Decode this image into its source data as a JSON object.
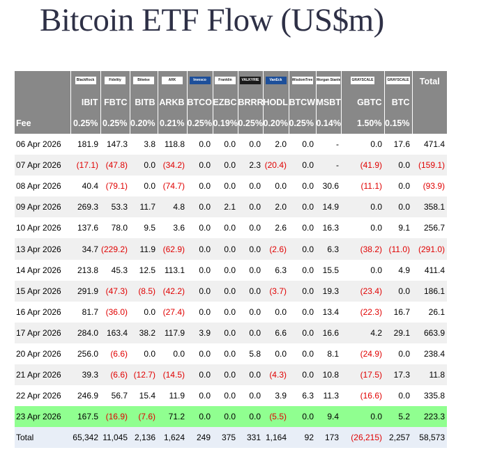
{
  "title": "Bitcoin ETF Flow (US$m)",
  "highlight_color": "#90ff90",
  "negative_color": "#e00000",
  "header_color": "#888888",
  "funds": [
    {
      "ticker": "IBIT",
      "issuer": "BlackRock",
      "fee": "0.25%"
    },
    {
      "ticker": "FBTC",
      "issuer": "Fidelity",
      "fee": "0.25%"
    },
    {
      "ticker": "BITB",
      "issuer": "Bitwise",
      "fee": "0.20%"
    },
    {
      "ticker": "ARKB",
      "issuer": "ARK",
      "fee": "0.21%"
    },
    {
      "ticker": "BTCO",
      "issuer": "Invesco",
      "fee": "0.25%"
    },
    {
      "ticker": "EZBC",
      "issuer": "Franklin",
      "fee": "0.19%"
    },
    {
      "ticker": "BRRR",
      "issuer": "VALKYRIE",
      "fee": "0.25%"
    },
    {
      "ticker": "HODL",
      "issuer": "VanEck",
      "fee": "0.20%"
    },
    {
      "ticker": "BTCW",
      "issuer": "WisdomTree",
      "fee": "0.25%"
    },
    {
      "ticker": "MSBT",
      "issuer": "Morgan Stanley",
      "fee": "0.14%"
    },
    {
      "ticker": "GBTC",
      "issuer": "GRAYSCALE",
      "fee": "1.50%"
    },
    {
      "ticker": "BTC",
      "issuer": "GRAYSCALE",
      "fee": "0.15%"
    }
  ],
  "total_label": "Total",
  "fee_label": "Fee",
  "rows": [
    {
      "date": "06 Apr 2026",
      "values": [
        "181.9",
        "147.3",
        "3.8",
        "118.8",
        "0.0",
        "0.0",
        "0.0",
        "2.0",
        "0.0",
        "-",
        "0.0",
        "17.6",
        "471.4"
      ]
    },
    {
      "date": "07 Apr 2026",
      "values": [
        "(17.1)",
        "(47.8)",
        "0.0",
        "(34.2)",
        "0.0",
        "0.0",
        "2.3",
        "(20.4)",
        "0.0",
        "-",
        "(41.9)",
        "0.0",
        "(159.1)"
      ]
    },
    {
      "date": "08 Apr 2026",
      "values": [
        "40.4",
        "(79.1)",
        "0.0",
        "(74.7)",
        "0.0",
        "0.0",
        "0.0",
        "0.0",
        "0.0",
        "30.6",
        "(11.1)",
        "0.0",
        "(93.9)"
      ]
    },
    {
      "date": "09 Apr 2026",
      "values": [
        "269.3",
        "53.3",
        "11.7",
        "4.8",
        "0.0",
        "2.1",
        "0.0",
        "2.0",
        "0.0",
        "14.9",
        "0.0",
        "0.0",
        "358.1"
      ]
    },
    {
      "date": "10 Apr 2026",
      "values": [
        "137.6",
        "78.0",
        "9.5",
        "3.6",
        "0.0",
        "0.0",
        "0.0",
        "2.6",
        "0.0",
        "16.3",
        "0.0",
        "9.1",
        "256.7"
      ]
    },
    {
      "date": "13 Apr 2026",
      "values": [
        "34.7",
        "(229.2)",
        "11.9",
        "(62.9)",
        "0.0",
        "0.0",
        "0.0",
        "(2.6)",
        "0.0",
        "6.3",
        "(38.2)",
        "(11.0)",
        "(291.0)"
      ]
    },
    {
      "date": "14 Apr 2026",
      "values": [
        "213.8",
        "45.3",
        "12.5",
        "113.1",
        "0.0",
        "0.0",
        "0.0",
        "6.3",
        "0.0",
        "15.5",
        "0.0",
        "4.9",
        "411.4"
      ]
    },
    {
      "date": "15 Apr 2026",
      "values": [
        "291.9",
        "(47.3)",
        "(8.5)",
        "(42.2)",
        "0.0",
        "0.0",
        "0.0",
        "(3.7)",
        "0.0",
        "19.3",
        "(23.4)",
        "0.0",
        "186.1"
      ]
    },
    {
      "date": "16 Apr 2026",
      "values": [
        "81.7",
        "(36.0)",
        "0.0",
        "(27.4)",
        "0.0",
        "0.0",
        "0.0",
        "0.0",
        "0.0",
        "13.4",
        "(22.3)",
        "16.7",
        "26.1"
      ]
    },
    {
      "date": "17 Apr 2026",
      "values": [
        "284.0",
        "163.4",
        "38.2",
        "117.9",
        "3.9",
        "0.0",
        "0.0",
        "6.6",
        "0.0",
        "16.6",
        "4.2",
        "29.1",
        "663.9"
      ]
    },
    {
      "date": "20 Apr 2026",
      "values": [
        "256.0",
        "(6.6)",
        "0.0",
        "0.0",
        "0.0",
        "0.0",
        "5.8",
        "0.0",
        "0.0",
        "8.1",
        "(24.9)",
        "0.0",
        "238.4"
      ]
    },
    {
      "date": "21 Apr 2026",
      "values": [
        "39.3",
        "(6.6)",
        "(12.7)",
        "(14.5)",
        "0.0",
        "0.0",
        "0.0",
        "(4.3)",
        "0.0",
        "10.8",
        "(17.5)",
        "17.3",
        "11.8"
      ]
    },
    {
      "date": "22 Apr 2026",
      "values": [
        "246.9",
        "56.7",
        "15.4",
        "11.9",
        "0.0",
        "0.0",
        "0.0",
        "3.9",
        "6.3",
        "11.3",
        "(16.6)",
        "0.0",
        "335.8"
      ]
    },
    {
      "date": "23 Apr 2026",
      "values": [
        "167.5",
        "(16.9)",
        "(7.6)",
        "71.2",
        "0.0",
        "0.0",
        "0.0",
        "(5.5)",
        "0.0",
        "9.4",
        "0.0",
        "5.2",
        "223.3"
      ],
      "highlight": true
    }
  ],
  "totals": {
    "label": "Total",
    "values": [
      "65,342",
      "11,045",
      "2,136",
      "1,624",
      "249",
      "375",
      "331",
      "1,164",
      "92",
      "173",
      "(26,215)",
      "2,257",
      "58,573"
    ]
  }
}
